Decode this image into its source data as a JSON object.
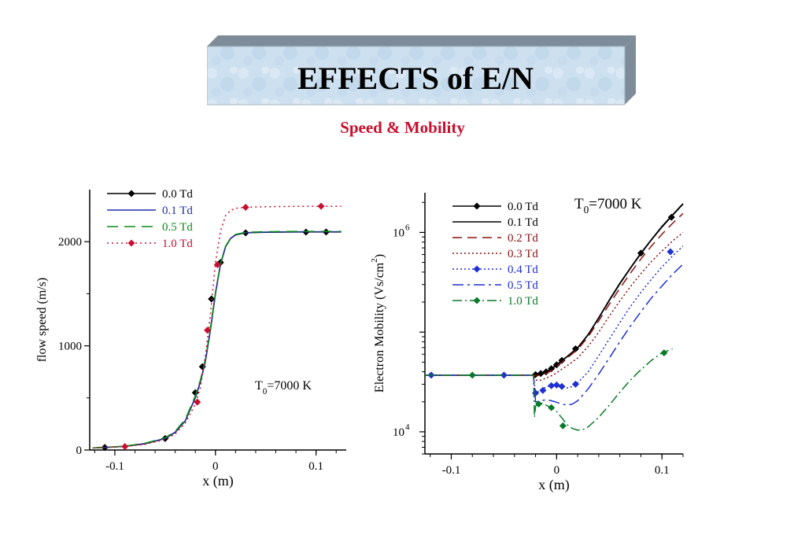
{
  "slide": {
    "title": "EFFECTS of E/N",
    "subtitle": "Speed & Mobility"
  },
  "chart_data": [
    {
      "type": "line",
      "xlabel": "x (m)",
      "ylabel": "flow speed (m/s)",
      "xlim": [
        -0.125,
        0.13
      ],
      "ylim": [
        0,
        2500
      ],
      "xticks": [
        -0.1,
        0,
        0.1
      ],
      "xtick_labels": [
        "-0.1",
        "0",
        "0.1"
      ],
      "yticks": [
        0,
        1000,
        2000
      ],
      "ytick_labels": [
        "0",
        "1000",
        "2000"
      ],
      "legend_position": "top-left",
      "annotation": {
        "main": "T",
        "sub": "0",
        "rest": "=7000 K"
      },
      "series": [
        {
          "name": "0.0 Td",
          "color": "#000000",
          "dash": "",
          "marker": "diamond",
          "x": [
            -0.122,
            -0.11,
            -0.09,
            -0.07,
            -0.05,
            -0.04,
            -0.03,
            -0.02,
            -0.015,
            -0.01,
            -0.005,
            0,
            0.005,
            0.01,
            0.015,
            0.02,
            0.03,
            0.05,
            0.07,
            0.09,
            0.11,
            0.125
          ],
          "y": [
            20,
            25,
            35,
            60,
            110,
            170,
            280,
            500,
            650,
            850,
            1150,
            1500,
            1780,
            1950,
            2030,
            2065,
            2085,
            2090,
            2092,
            2093,
            2093,
            2093
          ],
          "marker_x": [
            -0.11,
            -0.05,
            -0.02,
            -0.013,
            -0.004,
            0.005,
            0.03,
            0.09,
            0.11
          ],
          "marker_y": [
            25,
            110,
            550,
            800,
            1450,
            1800,
            2085,
            2092,
            2093
          ]
        },
        {
          "name": "0.1 Td",
          "color": "#1f2fa0",
          "dash": "",
          "marker": "",
          "x": [
            -0.122,
            -0.11,
            -0.09,
            -0.07,
            -0.05,
            -0.04,
            -0.03,
            -0.02,
            -0.015,
            -0.01,
            -0.005,
            0,
            0.005,
            0.01,
            0.015,
            0.02,
            0.03,
            0.05,
            0.07,
            0.09,
            0.11,
            0.125
          ],
          "y": [
            20,
            25,
            36,
            62,
            112,
            172,
            282,
            505,
            655,
            855,
            1155,
            1505,
            1785,
            1952,
            2032,
            2067,
            2087,
            2092,
            2094,
            2095,
            2095,
            2095
          ],
          "marker_x": [],
          "marker_y": []
        },
        {
          "name": "0.5 Td",
          "color": "#0a8a1a",
          "dash": "14,8",
          "marker": "",
          "x": [
            -0.122,
            -0.11,
            -0.09,
            -0.07,
            -0.05,
            -0.04,
            -0.03,
            -0.02,
            -0.015,
            -0.01,
            -0.005,
            0,
            0.005,
            0.01,
            0.015,
            0.02,
            0.03,
            0.05,
            0.07,
            0.09,
            0.11,
            0.125
          ],
          "y": [
            20,
            26,
            38,
            65,
            118,
            180,
            295,
            520,
            670,
            870,
            1170,
            1515,
            1790,
            1955,
            2035,
            2070,
            2090,
            2096,
            2098,
            2099,
            2099,
            2099
          ],
          "marker_x": [],
          "marker_y": []
        },
        {
          "name": "1.0 Td",
          "color": "#c8102e",
          "dash": "2,4",
          "marker": "diamond",
          "x": [
            -0.122,
            -0.11,
            -0.09,
            -0.07,
            -0.05,
            -0.04,
            -0.03,
            -0.02,
            -0.015,
            -0.01,
            -0.005,
            0,
            0.005,
            0.01,
            0.015,
            0.02,
            0.03,
            0.05,
            0.07,
            0.09,
            0.11,
            0.125
          ],
          "y": [
            20,
            25,
            33,
            55,
            100,
            155,
            260,
            440,
            600,
            900,
            1300,
            1800,
            2100,
            2250,
            2300,
            2320,
            2330,
            2335,
            2338,
            2340,
            2340,
            2340
          ],
          "marker_x": [
            -0.09,
            -0.018,
            -0.008,
            0.002,
            0.03,
            0.105
          ],
          "marker_y": [
            33,
            460,
            1150,
            1780,
            2330,
            2340
          ]
        }
      ]
    },
    {
      "type": "line",
      "xlabel": "x (m)",
      "ylabel": "Electron Mobility (Vs/cm",
      "ylabel_sup": "2",
      "ylabel_end": ")",
      "y_scale": "log",
      "xlim": [
        -0.125,
        0.12
      ],
      "ylim": [
        6000,
        2500000
      ],
      "xticks": [
        -0.1,
        0,
        0.1
      ],
      "xtick_labels": [
        "-0.1",
        "0",
        "0.1"
      ],
      "yticks": [
        10000,
        1000000
      ],
      "ytick_labels": [
        {
          "base": "10",
          "exp": "4"
        },
        {
          "base": "10",
          "exp": "6"
        }
      ],
      "legend_position": "top-left",
      "annotation": {
        "main": "T",
        "sub": "0",
        "rest": "=7000 K"
      },
      "series": [
        {
          "name": "0.0 Td",
          "color": "#000000",
          "dash": "",
          "marker": "diamond",
          "x": [
            -0.125,
            -0.1,
            -0.05,
            -0.03,
            -0.022,
            -0.02,
            -0.015,
            -0.01,
            -0.005,
            0,
            0.005,
            0.01,
            0.02,
            0.03,
            0.04,
            0.05,
            0.06,
            0.07,
            0.08,
            0.09,
            0.1,
            0.11,
            0.12
          ],
          "y": [
            37000,
            37000,
            37000,
            37000,
            37000,
            37500,
            38500,
            40000,
            43000,
            47000,
            52000,
            57000,
            70000,
            95000,
            140000,
            210000,
            310000,
            440000,
            620000,
            850000,
            1150000,
            1500000,
            1950000
          ],
          "marker_x": [
            -0.02,
            -0.015,
            -0.01,
            -0.005,
            0,
            0.005,
            0.018,
            0.08,
            0.109
          ],
          "marker_y": [
            37500,
            38500,
            40000,
            43000,
            47000,
            52000,
            68000,
            620000,
            1420000
          ]
        },
        {
          "name": "0.1 Td",
          "color": "#000000",
          "dash": "",
          "marker": "",
          "x": [
            -0.125,
            -0.1,
            -0.05,
            -0.03,
            -0.022,
            -0.02,
            -0.015,
            -0.01,
            -0.005,
            0,
            0.005,
            0.01,
            0.02,
            0.03,
            0.04,
            0.05,
            0.06,
            0.07,
            0.08,
            0.09,
            0.1,
            0.11,
            0.12
          ],
          "y": [
            37000,
            37000,
            37000,
            37000,
            37000,
            37300,
            38200,
            39700,
            42500,
            46500,
            51500,
            56500,
            69500,
            94000,
            138000,
            207000,
            305000,
            435000,
            610000,
            840000,
            1130000,
            1480000,
            1920000
          ],
          "marker_x": [],
          "marker_y": []
        },
        {
          "name": "0.2 Td",
          "color": "#8b1010",
          "dash": "12,7",
          "marker": "",
          "x": [
            -0.125,
            -0.1,
            -0.05,
            -0.03,
            -0.022,
            -0.02,
            -0.015,
            -0.01,
            -0.005,
            0,
            0.005,
            0.01,
            0.02,
            0.03,
            0.04,
            0.05,
            0.06,
            0.07,
            0.08,
            0.09,
            0.1,
            0.11,
            0.12
          ],
          "y": [
            37000,
            37000,
            37000,
            37000,
            37000,
            36500,
            37000,
            38500,
            41000,
            45000,
            50000,
            55000,
            67000,
            90000,
            130000,
            190000,
            275000,
            390000,
            540000,
            730000,
            960000,
            1230000,
            1550000
          ],
          "marker_x": [],
          "marker_y": []
        },
        {
          "name": "0.3 Td",
          "color": "#8b1010",
          "dash": "2,3",
          "marker": "",
          "x": [
            -0.125,
            -0.1,
            -0.05,
            -0.03,
            -0.022,
            -0.02,
            -0.015,
            -0.01,
            -0.005,
            0,
            0.005,
            0.01,
            0.02,
            0.03,
            0.04,
            0.05,
            0.06,
            0.07,
            0.08,
            0.09,
            0.1,
            0.11,
            0.12
          ],
          "y": [
            37000,
            37000,
            37000,
            37000,
            37000,
            33000,
            33000,
            34500,
            36500,
            39000,
            42500,
            46000,
            55000,
            72000,
            100000,
            145000,
            205000,
            285000,
            385000,
            510000,
            650000,
            820000,
            1000000
          ],
          "marker_x": [],
          "marker_y": []
        },
        {
          "name": "0.4 Td",
          "color": "#1f2fd0",
          "dash": "2,3",
          "marker": "diamond",
          "x": [
            -0.125,
            -0.1,
            -0.05,
            -0.03,
            -0.022,
            -0.02,
            -0.018,
            -0.015,
            -0.01,
            -0.005,
            0,
            0.005,
            0.01,
            0.015,
            0.02,
            0.03,
            0.04,
            0.05,
            0.06,
            0.07,
            0.08,
            0.09,
            0.1,
            0.11,
            0.12
          ],
          "y": [
            37000,
            37000,
            37000,
            37000,
            37000,
            24000,
            25000,
            26500,
            28000,
            29500,
            29500,
            28500,
            27500,
            28500,
            31000,
            40000,
            58000,
            85000,
            125000,
            180000,
            250000,
            340000,
            450000,
            580000,
            730000
          ],
          "marker_x": [
            -0.119,
            -0.05,
            -0.02,
            -0.013,
            -0.005,
            0,
            0.005,
            0.018,
            0.108
          ],
          "marker_y": [
            37000,
            37000,
            24500,
            26000,
            29000,
            29500,
            28500,
            30000,
            640000
          ]
        },
        {
          "name": "0.5 Td",
          "color": "#1f2fd0",
          "dash": "14,5,3,5",
          "marker": "",
          "x": [
            -0.125,
            -0.1,
            -0.05,
            -0.03,
            -0.022,
            -0.02,
            -0.018,
            -0.015,
            -0.01,
            -0.005,
            0,
            0.005,
            0.01,
            0.015,
            0.02,
            0.03,
            0.04,
            0.05,
            0.06,
            0.07,
            0.08,
            0.09,
            0.1,
            0.11,
            0.12
          ],
          "y": [
            37000,
            37000,
            37000,
            37000,
            37000,
            20000,
            20000,
            20500,
            21000,
            20500,
            19800,
            19000,
            18500,
            19000,
            20500,
            27000,
            38000,
            55000,
            80000,
            115000,
            160000,
            220000,
            290000,
            380000,
            480000
          ],
          "marker_x": [],
          "marker_y": []
        },
        {
          "name": "1.0 Td",
          "color": "#0a7a2a",
          "dash": "12,4,2,4",
          "marker": "diamond",
          "x": [
            -0.125,
            -0.1,
            -0.05,
            -0.03,
            -0.022,
            -0.021,
            -0.02,
            -0.018,
            -0.015,
            -0.01,
            -0.005,
            0,
            0.005,
            0.01,
            0.015,
            0.02,
            0.025,
            0.03,
            0.04,
            0.05,
            0.06,
            0.07,
            0.08,
            0.09,
            0.1,
            0.11
          ],
          "y": [
            37000,
            37000,
            37000,
            37000,
            37000,
            14000,
            18000,
            19000,
            19500,
            18500,
            17500,
            16000,
            13800,
            11800,
            10800,
            10400,
            10500,
            11200,
            14000,
            18500,
            25000,
            33000,
            42000,
            52000,
            62000,
            68000
          ],
          "marker_x": [
            -0.08,
            -0.017,
            -0.005,
            0.006,
            0.102
          ],
          "marker_y": [
            37000,
            19000,
            17500,
            11500,
            62000
          ]
        }
      ]
    }
  ]
}
